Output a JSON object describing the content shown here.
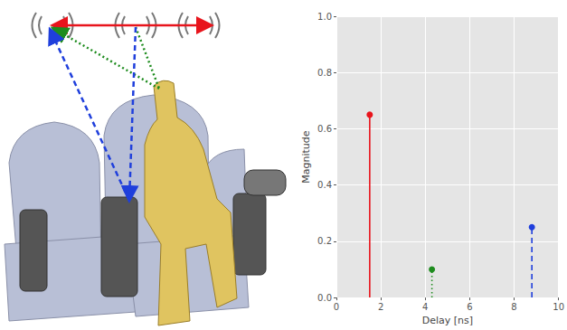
{
  "chart_data": {
    "type": "stem",
    "xlabel": "Delay [ns]",
    "ylabel": "Magnitude",
    "xlim": [
      0,
      10
    ],
    "xticks": [
      0,
      2,
      4,
      6,
      8,
      10
    ],
    "ylim": [
      0,
      1
    ],
    "yticks": [
      {
        "value": 0,
        "label": "0.0"
      },
      0.2,
      0.4,
      0.6,
      0.8,
      {
        "value": 1,
        "label": "1.0"
      }
    ],
    "grid": true,
    "series": [
      {
        "x": [
          1.5
        ],
        "values": [
          0.65
        ],
        "color": "#e8141c",
        "line_style": "solid",
        "marker": "circle"
      },
      {
        "x": [
          4.3
        ],
        "values": [
          0.1
        ],
        "color": "#1e8c1e",
        "line_style": "dotted",
        "marker": "circle"
      },
      {
        "x": [
          8.8
        ],
        "values": [
          0.25
        ],
        "color": "#1f3fdc",
        "line_style": "dashed",
        "marker": "circle"
      }
    ]
  }
}
